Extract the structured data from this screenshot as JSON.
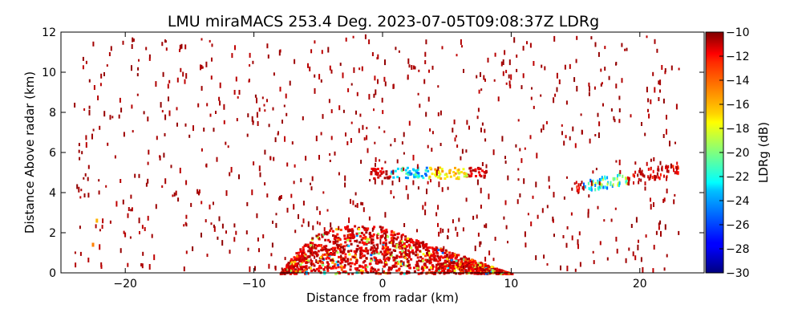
{
  "chart_data": {
    "type": "heatmap",
    "title": "LMU miraMACS 253.4 Deg. 2023-07-05T09:08:37Z  LDRg",
    "xlabel": "Distance from radar (km)",
    "ylabel": "Distance Above radar  (km)",
    "xlim": [
      -25,
      25
    ],
    "ylim": [
      0,
      12
    ],
    "x_ticks": [
      -20,
      -10,
      0,
      10,
      20
    ],
    "y_ticks": [
      0,
      2,
      4,
      6,
      8,
      10,
      12
    ],
    "x_tick_labels": [
      "−20",
      "−10",
      "0",
      "10",
      "20"
    ],
    "y_tick_labels": [
      "0",
      "2",
      "4",
      "6",
      "8",
      "10",
      "12"
    ],
    "grid": false,
    "colorbar": {
      "label": "LDRg (dB)",
      "colormap": "jet",
      "range": [
        -30,
        -10
      ],
      "ticks": [
        -10,
        -12,
        -14,
        -16,
        -18,
        -20,
        -22,
        -24,
        -26,
        -28,
        -30
      ],
      "tick_labels": [
        "−10",
        "−12",
        "−14",
        "−16",
        "−18",
        "−20",
        "−22",
        "−24",
        "−26",
        "−28",
        "−30"
      ]
    },
    "regions": [
      {
        "x_range": [
          -8,
          10
        ],
        "y_range": [
          0,
          2.4
        ],
        "ldr_range": [
          -14,
          -10
        ]
      },
      {
        "x_range": [
          -1,
          9
        ],
        "y_range": [
          4.7,
          5.4
        ],
        "ldr_range": [
          -24,
          -16
        ]
      },
      {
        "x_range": [
          15,
          23
        ],
        "y_range": [
          4,
          5.5
        ],
        "ldr_range": [
          -26,
          -14
        ]
      }
    ]
  }
}
